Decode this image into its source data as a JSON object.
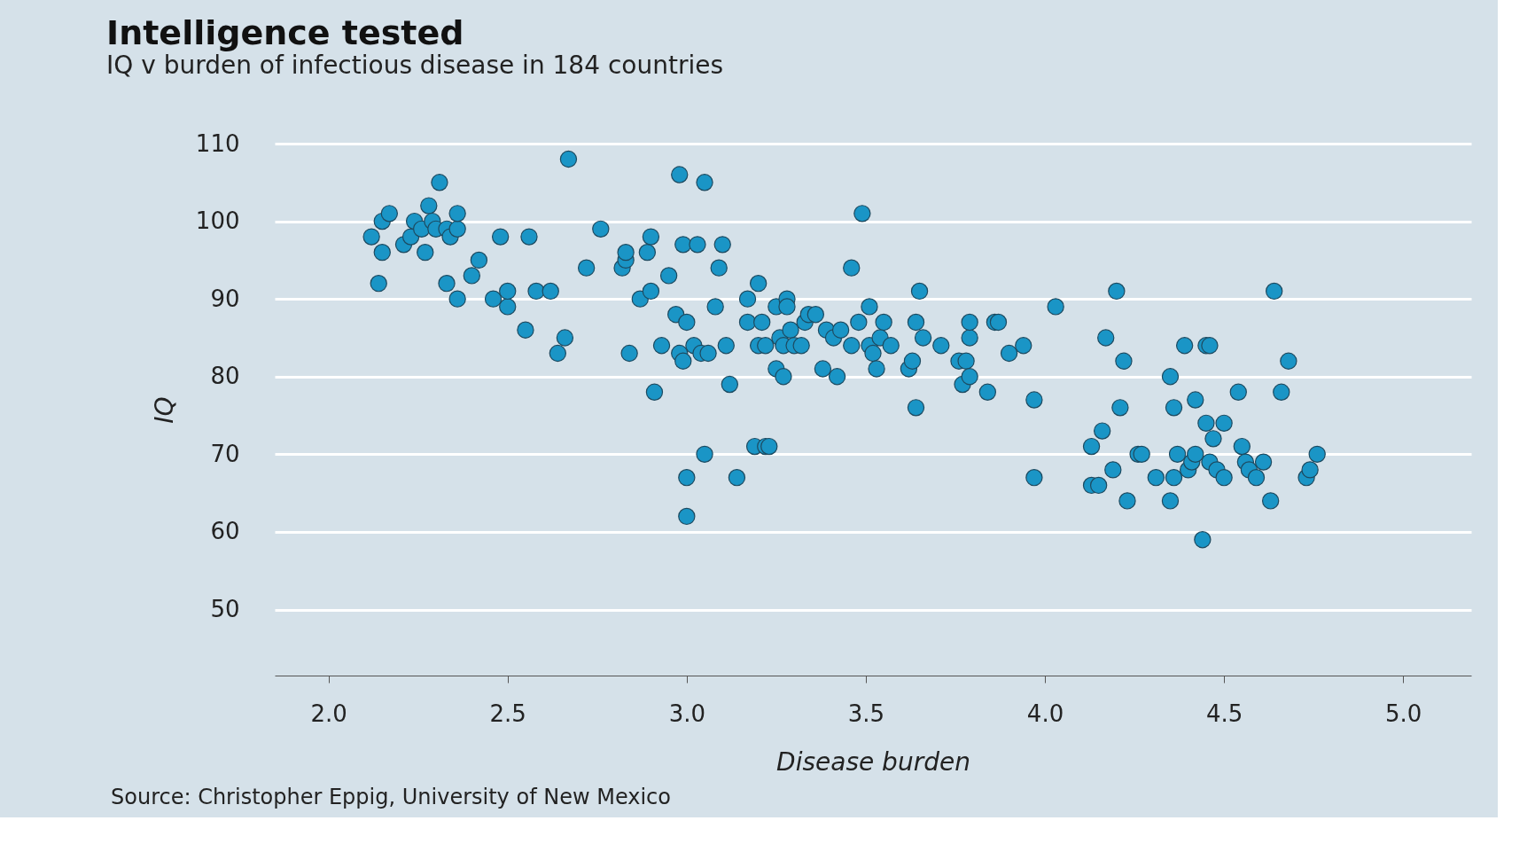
{
  "chart_data": {
    "type": "scatter",
    "title": "Intelligence tested",
    "subtitle": "IQ v burden of infectious disease in 184 countries",
    "xlabel": "Disease burden",
    "ylabel": "IQ",
    "annotations": [
      "Source: Christopher Eppig, University of New Mexico"
    ],
    "x": [
      2.12,
      2.14,
      2.15,
      2.15,
      2.17,
      2.21,
      2.23,
      2.24,
      2.26,
      2.27,
      2.28,
      2.29,
      2.31,
      2.3,
      2.33,
      2.34,
      2.33,
      2.36,
      2.36,
      2.36,
      2.4,
      2.42,
      2.46,
      2.48,
      2.5,
      2.5,
      2.55,
      2.56,
      2.58,
      2.62,
      2.64,
      2.66,
      2.67,
      2.72,
      2.76,
      2.82,
      2.83,
      2.83,
      2.84,
      2.87,
      2.89,
      2.9,
      2.9,
      2.91,
      2.93,
      2.95,
      2.97,
      2.98,
      2.98,
      2.99,
      2.99,
      3.0,
      3.0,
      3.0,
      3.02,
      3.03,
      3.04,
      3.05,
      3.06,
      3.05,
      3.08,
      3.09,
      3.1,
      3.11,
      3.12,
      3.14,
      3.17,
      3.17,
      3.19,
      3.2,
      3.2,
      3.21,
      3.22,
      3.23,
      3.22,
      3.25,
      3.25,
      3.26,
      3.27,
      3.27,
      3.28,
      3.28,
      3.29,
      3.3,
      3.32,
      3.33,
      3.34,
      3.36,
      3.38,
      3.39,
      3.41,
      3.42,
      3.43,
      3.46,
      3.46,
      3.48,
      3.49,
      3.51,
      3.51,
      3.52,
      3.53,
      3.54,
      3.55,
      3.57,
      3.62,
      3.63,
      3.64,
      3.64,
      3.65,
      3.66,
      3.71,
      3.76,
      3.77,
      3.78,
      3.79,
      3.79,
      3.79,
      3.84,
      3.86,
      3.87,
      3.9,
      3.94,
      3.97,
      3.97,
      4.03,
      4.13,
      4.13,
      4.15,
      4.16,
      4.17,
      4.19,
      4.2,
      4.21,
      4.22,
      4.23,
      4.26,
      4.27,
      4.31,
      4.35,
      4.35,
      4.36,
      4.36,
      4.37,
      4.39,
      4.4,
      4.41,
      4.42,
      4.42,
      4.44,
      4.45,
      4.45,
      4.46,
      4.46,
      4.47,
      4.48,
      4.5,
      4.5,
      4.54,
      4.55,
      4.56,
      4.57,
      4.59,
      4.61,
      4.63,
      4.64,
      4.66,
      4.68,
      4.73,
      4.74,
      4.76
    ],
    "values": [
      98,
      92,
      96,
      100,
      101,
      97,
      98,
      100,
      99,
      96,
      102,
      100,
      105,
      99,
      99,
      98,
      92,
      99,
      101,
      90,
      93,
      95,
      90,
      98,
      89,
      91,
      86,
      98,
      91,
      91,
      83,
      85,
      108,
      94,
      99,
      94,
      95,
      96,
      83,
      90,
      96,
      98,
      91,
      78,
      84,
      93,
      88,
      106,
      83,
      82,
      97,
      87,
      67,
      62,
      84,
      97,
      83,
      105,
      83,
      70,
      89,
      94,
      97,
      84,
      79,
      67,
      90,
      87,
      71,
      84,
      92,
      87,
      71,
      71,
      84,
      89,
      81,
      85,
      84,
      80,
      90,
      89,
      86,
      84,
      84,
      87,
      88,
      88,
      81,
      86,
      85,
      80,
      86,
      94,
      84,
      87,
      101,
      89,
      84,
      83,
      81,
      85,
      87,
      84,
      81,
      82,
      76,
      87,
      91,
      85,
      84,
      82,
      79,
      82,
      85,
      87,
      80,
      78,
      87,
      87,
      83,
      84,
      77,
      67,
      89,
      71,
      66,
      66,
      73,
      85,
      68,
      91,
      76,
      82,
      64,
      70,
      70,
      67,
      80,
      64,
      76,
      67,
      70,
      84,
      68,
      69,
      70,
      77,
      59,
      74,
      84,
      84,
      69,
      72,
      68,
      74,
      67,
      78,
      71,
      69,
      68,
      67,
      69,
      64,
      91,
      78,
      82,
      67,
      68,
      70
    ],
    "color": "#1a95c6",
    "marker": "circle",
    "xlim": [
      1.85,
      5.19
    ],
    "xticks": [
      {
        "value": 2,
        "label": "2.0"
      },
      {
        "value": 2.5,
        "label": "2.5"
      },
      {
        "value": 3,
        "label": "3.0"
      },
      {
        "value": 3.5,
        "label": "3.5"
      },
      {
        "value": 4,
        "label": "4.0"
      },
      {
        "value": 4.5,
        "label": "4.5"
      },
      {
        "value": 5,
        "label": "5.0"
      }
    ],
    "ylim": [
      41.5,
      110
    ],
    "yticks": [
      50,
      60,
      70,
      80,
      90,
      100,
      110
    ],
    "grid": "y"
  }
}
